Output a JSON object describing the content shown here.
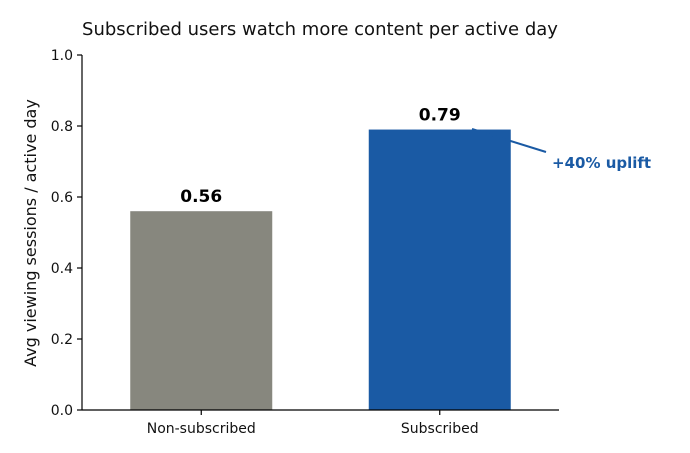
{
  "chart_data": {
    "type": "bar",
    "title": "Subscribed users watch more content per active day",
    "xlabel": "",
    "ylabel": "Avg viewing sessions / active day",
    "categories": [
      "Non-subscribed",
      "Subscribed"
    ],
    "values": [
      0.56,
      0.79
    ],
    "value_labels": [
      "0.56",
      "0.79"
    ],
    "bar_colors": [
      "#87877e",
      "#1a5aa4"
    ],
    "ylim": [
      0,
      1.0
    ],
    "yticks": [
      0.0,
      0.2,
      0.4,
      0.6,
      0.8,
      1.0
    ],
    "ytick_labels": [
      "0.0",
      "0.2",
      "0.4",
      "0.6",
      "0.8",
      "1.0"
    ],
    "grid": false,
    "annotation": {
      "text": "+40% uplift",
      "color": "#1a5aa4",
      "target_category": "Subscribed"
    }
  }
}
